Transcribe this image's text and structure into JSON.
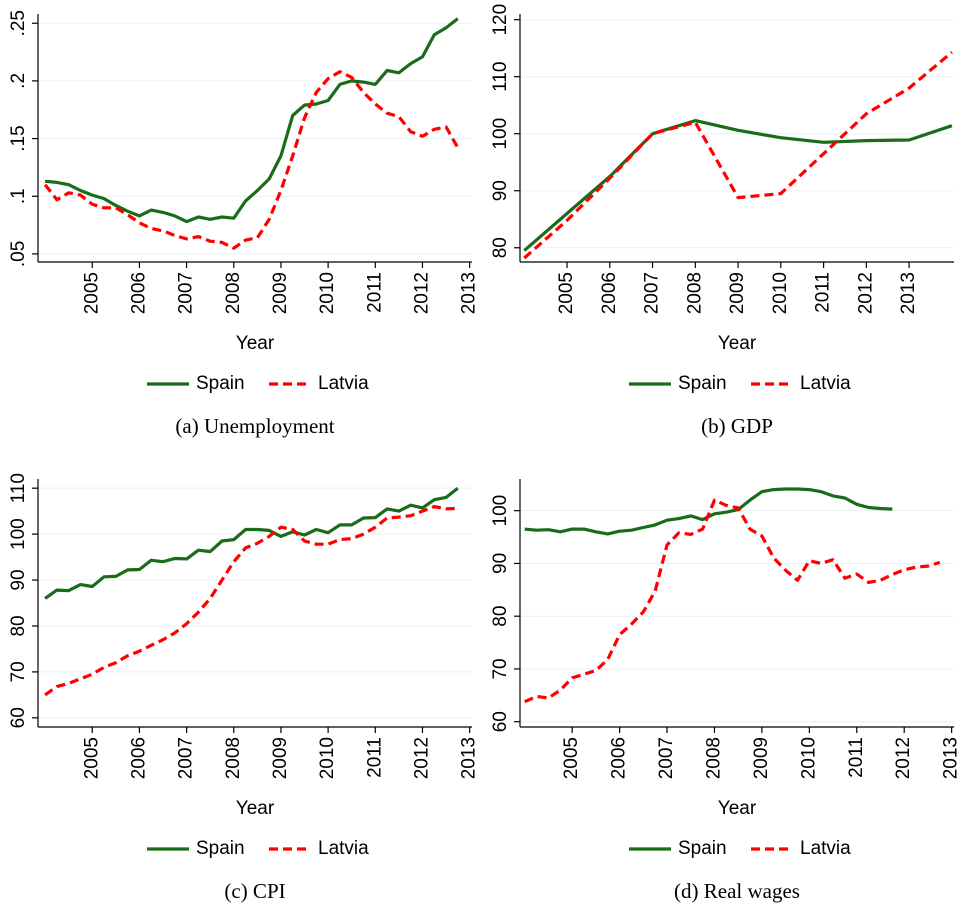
{
  "chart_data": [
    {
      "type": "line",
      "caption": "(a)  Unemployment",
      "xlabel": "Year",
      "x": [
        2004,
        2004.25,
        2004.5,
        2004.75,
        2005,
        2005.25,
        2005.5,
        2005.75,
        2006,
        2006.25,
        2006.5,
        2006.75,
        2007,
        2007.25,
        2007.5,
        2007.75,
        2008,
        2008.25,
        2008.5,
        2008.75,
        2009,
        2009.25,
        2009.5,
        2009.75,
        2010,
        2010.25,
        2010.5,
        2010.75,
        2011,
        2011.25,
        2011.5,
        2011.75,
        2012,
        2012.25,
        2012.5,
        2012.75
      ],
      "series": [
        {
          "name": "Spain",
          "color": "#1a6b1a",
          "dashed": false,
          "values": [
            0.113,
            0.112,
            0.11,
            0.105,
            0.101,
            0.098,
            0.092,
            0.087,
            0.083,
            0.088,
            0.086,
            0.083,
            0.078,
            0.082,
            0.08,
            0.082,
            0.081,
            0.096,
            0.105,
            0.115,
            0.135,
            0.17,
            0.179,
            0.18,
            0.183,
            0.197,
            0.2,
            0.199,
            0.197,
            0.209,
            0.207,
            0.215,
            0.221,
            0.24,
            0.246,
            0.254
          ]
        },
        {
          "name": "Latvia",
          "color": "#ff0000",
          "dashed": true,
          "values": [
            0.11,
            0.097,
            0.103,
            0.101,
            0.093,
            0.09,
            0.09,
            0.084,
            0.077,
            0.072,
            0.07,
            0.066,
            0.063,
            0.065,
            0.061,
            0.06,
            0.055,
            0.062,
            0.064,
            0.08,
            0.105,
            0.135,
            0.168,
            0.19,
            0.202,
            0.208,
            0.203,
            0.19,
            0.18,
            0.172,
            0.169,
            0.156,
            0.152,
            0.158,
            0.16,
            0.142
          ]
        }
      ],
      "xlim": [
        2003.85,
        2013.05
      ],
      "xticks": [
        2005,
        2006,
        2007,
        2008,
        2009,
        2010,
        2011,
        2012,
        2013
      ],
      "ylim": [
        0.043,
        0.258
      ],
      "yticks": [
        {
          "value": 0.05,
          "label": ".05"
        },
        {
          "value": 0.1,
          "label": ".1"
        },
        {
          "value": 0.15,
          "label": ".15"
        },
        {
          "value": 0.2,
          "label": ".2"
        },
        {
          "value": 0.25,
          "label": ".25"
        }
      ],
      "grid": true
    },
    {
      "type": "line",
      "caption": "(b)  GDP",
      "xlabel": "Year",
      "x": [
        2004,
        2005,
        2006,
        2007,
        2008,
        2009,
        2010,
        2011,
        2012,
        2013,
        2014
      ],
      "series": [
        {
          "name": "Spain",
          "color": "#1a6b1a",
          "dashed": false,
          "values": [
            79.5,
            86,
            92.5,
            100,
            102.3,
            100.6,
            99.3,
            98.5,
            98.8,
            98.9,
            101.4
          ]
        },
        {
          "name": "Latvia",
          "color": "#ff0000",
          "dashed": true,
          "values": [
            78.2,
            84.8,
            92.2,
            100,
            102,
            88.8,
            89.5,
            96.5,
            103.5,
            108,
            114.3
          ]
        }
      ],
      "xlim": [
        2003.9,
        2014.05
      ],
      "xticks": [
        2005,
        2006,
        2007,
        2008,
        2009,
        2010,
        2011,
        2012,
        2013
      ],
      "ylim": [
        77.5,
        121
      ],
      "yticks": [
        80,
        90,
        100,
        110,
        120
      ],
      "grid": true
    },
    {
      "type": "line",
      "caption": "(c)  CPI",
      "xlabel": "Year",
      "x": [
        2004,
        2004.25,
        2004.5,
        2004.75,
        2005,
        2005.25,
        2005.5,
        2005.75,
        2006,
        2006.25,
        2006.5,
        2006.75,
        2007,
        2007.25,
        2007.5,
        2007.75,
        2008,
        2008.25,
        2008.5,
        2008.75,
        2009,
        2009.25,
        2009.5,
        2009.75,
        2010,
        2010.25,
        2010.5,
        2010.75,
        2011,
        2011.25,
        2011.5,
        2011.75,
        2012,
        2012.25,
        2012.5,
        2012.75
      ],
      "series": [
        {
          "name": "Spain",
          "color": "#1a6b1a",
          "dashed": false,
          "values": [
            86,
            87.8,
            87.7,
            89,
            88.6,
            90.7,
            90.8,
            92.2,
            92.3,
            94.3,
            94,
            94.7,
            94.6,
            96.5,
            96.2,
            98.5,
            98.8,
            101,
            101,
            100.8,
            99.5,
            100.5,
            99.8,
            101,
            100.3,
            102,
            102,
            103.5,
            103.6,
            105.5,
            105,
            106.3,
            105.7,
            107.5,
            108,
            110
          ]
        },
        {
          "name": "Latvia",
          "color": "#ff0000",
          "dashed": true,
          "values": [
            65,
            66.8,
            67.5,
            68.5,
            69.5,
            71,
            72,
            73.5,
            74.5,
            75.8,
            77,
            78.5,
            80.5,
            83,
            86,
            90,
            94,
            97,
            98,
            99.5,
            101.5,
            101,
            98.5,
            97.8,
            97.8,
            98.8,
            99,
            100,
            101.5,
            103.5,
            103.7,
            104,
            105,
            106,
            105.5,
            105.6
          ]
        }
      ],
      "xlim": [
        2003.85,
        2013.05
      ],
      "xticks": [
        2005,
        2006,
        2007,
        2008,
        2009,
        2010,
        2011,
        2012,
        2013
      ],
      "ylim": [
        58,
        112
      ],
      "yticks": [
        60,
        70,
        80,
        90,
        100,
        110
      ],
      "grid": true
    },
    {
      "type": "line",
      "caption": "(d)  Real wages",
      "xlabel": "Year",
      "x": [
        2004,
        2004.25,
        2004.5,
        2004.75,
        2005,
        2005.25,
        2005.5,
        2005.75,
        2006,
        2006.25,
        2006.5,
        2006.75,
        2007,
        2007.25,
        2007.5,
        2007.75,
        2008,
        2008.25,
        2008.5,
        2008.75,
        2009,
        2009.25,
        2009.5,
        2009.75,
        2010,
        2010.25,
        2010.5,
        2010.75,
        2011,
        2011.25,
        2011.5,
        2011.75,
        2012,
        2012.25,
        2012.5,
        2012.75
      ],
      "series": [
        {
          "name": "Spain",
          "color": "#1a6b1a",
          "dashed": false,
          "values": [
            96.5,
            96.3,
            96.4,
            96,
            96.5,
            96.5,
            96,
            95.6,
            96.1,
            96.3,
            96.8,
            97.3,
            98.2,
            98.5,
            99,
            98.3,
            99.4,
            99.7,
            100.2,
            102,
            103.6,
            104,
            104.1,
            104.1,
            104,
            103.6,
            102.8,
            102.4,
            101.2,
            100.6,
            100.4,
            100.3,
            null,
            null,
            null,
            null
          ]
        },
        {
          "name": "Latvia",
          "color": "#ff0000",
          "dashed": true,
          "values": [
            63.8,
            64.8,
            64.5,
            66,
            68.3,
            69,
            69.7,
            71.8,
            76.5,
            78.5,
            80.8,
            84.8,
            93.5,
            95.8,
            95.5,
            96.5,
            102,
            101,
            100.5,
            96.5,
            95.2,
            91,
            88.7,
            86.8,
            90.5,
            90,
            90.7,
            87.2,
            88,
            86.4,
            86.8,
            87.9,
            88.8,
            89.3,
            89.5,
            90.2
          ]
        }
      ],
      "xlim": [
        2003.9,
        2013.05
      ],
      "xticks": [
        2005,
        2006,
        2007,
        2008,
        2009,
        2010,
        2011,
        2012,
        2013
      ],
      "ylim": [
        59,
        106
      ],
      "yticks": [
        60,
        70,
        80,
        90,
        100
      ],
      "grid": true
    }
  ]
}
